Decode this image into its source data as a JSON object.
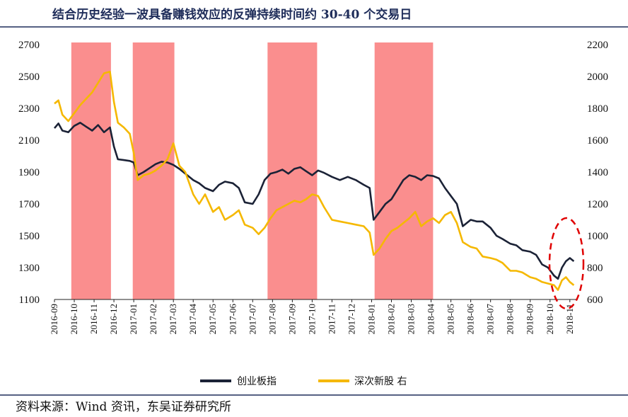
{
  "chart_data": {
    "type": "line",
    "title": "结合历史经验一波具备赚钱效应的反弹持续时间约 30-40 个交易日",
    "source": "资料来源：Wind 资讯，东吴证券研究所",
    "y_left": {
      "ticks": [
        "2700",
        "2500",
        "2300",
        "2100",
        "1900",
        "1700",
        "1500",
        "1300",
        "1100"
      ],
      "min": 1100,
      "max": 2700
    },
    "y_right": {
      "ticks": [
        "2200",
        "2000",
        "1800",
        "1600",
        "1400",
        "1200",
        "1000",
        "800",
        "600"
      ],
      "min": 600,
      "max": 2200
    },
    "x_ticks": [
      "2016-09",
      "2016-10",
      "2016-11",
      "2016-12",
      "2017-01",
      "2017-02",
      "2017-03",
      "2017-04",
      "2017-05",
      "2017-06",
      "2017-07",
      "2017-08",
      "2017-09",
      "2017-10",
      "2017-11",
      "2017-12",
      "2018-01",
      "2018-02",
      "2018-03",
      "2018-04",
      "2018-05",
      "2018-06",
      "2018-07",
      "2018-08",
      "2018-09",
      "2018-10",
      "2018-11"
    ],
    "x_range": [
      0,
      26.4
    ],
    "highlight_periods": [
      [
        0.85,
        2.85
      ],
      [
        3.95,
        6.05
      ],
      [
        10.75,
        13.25
      ],
      [
        16.15,
        19.1
      ]
    ],
    "highlight_color": "#fa8e8e",
    "series": [
      {
        "name": "创业板指",
        "axis": "left",
        "color": "#1b2236",
        "x": [
          0,
          0.2,
          0.4,
          0.7,
          1.0,
          1.3,
          1.6,
          1.9,
          2.2,
          2.5,
          2.8,
          3.0,
          3.2,
          3.5,
          3.8,
          4.0,
          4.2,
          4.5,
          4.8,
          5.1,
          5.4,
          5.7,
          6.0,
          6.3,
          6.6,
          7.0,
          7.3,
          7.6,
          8.0,
          8.3,
          8.6,
          9.0,
          9.3,
          9.6,
          10.0,
          10.3,
          10.6,
          10.9,
          11.2,
          11.5,
          11.8,
          12.1,
          12.4,
          12.7,
          13.0,
          13.3,
          13.6,
          14.0,
          14.4,
          14.8,
          15.2,
          15.6,
          15.9,
          16.1,
          16.4,
          16.7,
          17.0,
          17.3,
          17.6,
          17.9,
          18.2,
          18.5,
          18.8,
          19.1,
          19.4,
          19.7,
          20.0,
          20.3,
          20.6,
          21.0,
          21.3,
          21.6,
          22.0,
          22.3,
          22.6,
          23.0,
          23.3,
          23.6,
          24.0,
          24.3,
          24.6,
          24.9,
          25.2,
          25.4,
          25.6,
          25.8,
          26.0,
          26.2
        ],
        "y": [
          2175,
          2205,
          2160,
          2150,
          2190,
          2210,
          2185,
          2160,
          2195,
          2150,
          2180,
          2060,
          1980,
          1975,
          1970,
          1960,
          1880,
          1900,
          1925,
          1950,
          1965,
          1960,
          1945,
          1920,
          1890,
          1850,
          1830,
          1800,
          1780,
          1820,
          1840,
          1830,
          1800,
          1710,
          1700,
          1760,
          1850,
          1890,
          1900,
          1915,
          1890,
          1920,
          1930,
          1905,
          1880,
          1910,
          1895,
          1870,
          1850,
          1870,
          1850,
          1820,
          1800,
          1600,
          1650,
          1700,
          1730,
          1790,
          1850,
          1880,
          1870,
          1850,
          1880,
          1875,
          1860,
          1800,
          1750,
          1700,
          1560,
          1600,
          1590,
          1590,
          1550,
          1500,
          1480,
          1450,
          1440,
          1410,
          1400,
          1380,
          1320,
          1300,
          1250,
          1230,
          1300,
          1340,
          1360,
          1340
        ]
      },
      {
        "name": "深次新股 右",
        "axis": "right",
        "color": "#f5b800",
        "x": [
          0,
          0.2,
          0.4,
          0.7,
          1.0,
          1.3,
          1.6,
          1.9,
          2.2,
          2.5,
          2.8,
          3.0,
          3.2,
          3.5,
          3.8,
          4.0,
          4.2,
          4.5,
          4.8,
          5.1,
          5.4,
          5.7,
          6.0,
          6.3,
          6.6,
          7.0,
          7.3,
          7.6,
          8.0,
          8.3,
          8.6,
          9.0,
          9.3,
          9.6,
          10.0,
          10.3,
          10.6,
          10.9,
          11.2,
          11.5,
          11.8,
          12.1,
          12.4,
          12.7,
          13.0,
          13.3,
          13.6,
          14.0,
          14.4,
          14.8,
          15.2,
          15.6,
          15.9,
          16.1,
          16.4,
          16.7,
          17.0,
          17.3,
          17.6,
          17.9,
          18.2,
          18.5,
          18.8,
          19.1,
          19.4,
          19.7,
          20.0,
          20.3,
          20.6,
          21.0,
          21.3,
          21.6,
          22.0,
          22.3,
          22.6,
          23.0,
          23.3,
          23.6,
          24.0,
          24.3,
          24.6,
          24.9,
          25.2,
          25.4,
          25.6,
          25.8,
          26.0,
          26.2
        ],
        "y": [
          1830,
          1850,
          1760,
          1720,
          1770,
          1820,
          1860,
          1900,
          1960,
          2020,
          2030,
          1840,
          1710,
          1680,
          1640,
          1520,
          1350,
          1380,
          1390,
          1410,
          1440,
          1480,
          1580,
          1440,
          1400,
          1260,
          1200,
          1260,
          1150,
          1180,
          1100,
          1130,
          1160,
          1070,
          1050,
          1010,
          1050,
          1110,
          1160,
          1180,
          1200,
          1220,
          1210,
          1230,
          1260,
          1250,
          1180,
          1100,
          1090,
          1080,
          1070,
          1060,
          1020,
          880,
          920,
          980,
          1030,
          1050,
          1080,
          1110,
          1150,
          1060,
          1090,
          1110,
          1080,
          1130,
          1150,
          1080,
          960,
          930,
          920,
          870,
          860,
          850,
          830,
          780,
          780,
          770,
          740,
          730,
          710,
          700,
          690,
          660,
          720,
          740,
          710,
          690
        ]
      }
    ]
  }
}
